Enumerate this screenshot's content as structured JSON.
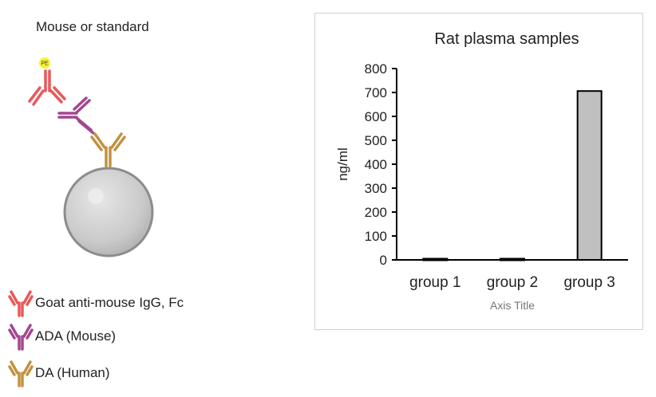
{
  "diagram": {
    "title": "Mouse or standard",
    "tag_label": "PE",
    "legend": [
      {
        "label": "Goat anti-mouse IgG, Fc",
        "color": "#e8595a",
        "icon": "antibody-icon"
      },
      {
        "label": "ADA (Mouse)",
        "color": "#a2478f",
        "icon": "antibody-icon"
      },
      {
        "label": "DA (Human)",
        "color": "#c2923f",
        "icon": "antibody-icon"
      }
    ]
  },
  "chart_data": {
    "type": "bar",
    "title": "Rat plasma samples",
    "xlabel": "Axis Title",
    "ylabel": "ng/ml",
    "categories": [
      "group 1",
      "group 2",
      "group 3"
    ],
    "values": [
      5,
      5,
      706
    ],
    "ylim": [
      0,
      800
    ],
    "yticks": [
      0,
      100,
      200,
      300,
      400,
      500,
      600,
      700,
      800
    ],
    "bar_color": "#c0c0c0",
    "bar_edge_color": "#000000",
    "grid": false
  }
}
